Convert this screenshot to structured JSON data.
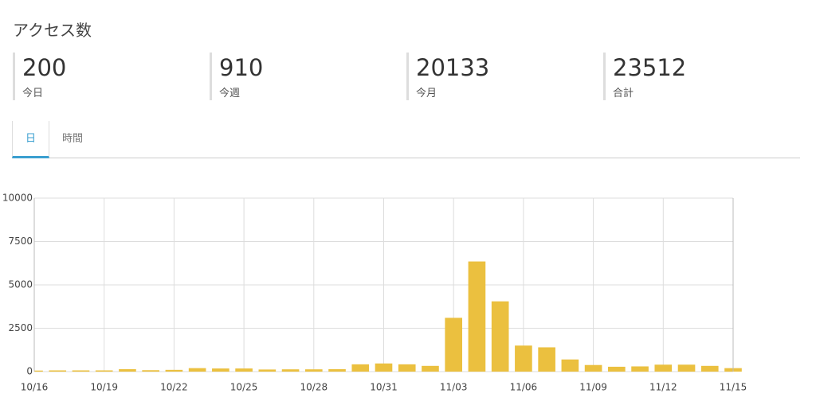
{
  "header": {
    "title": "アクセス数"
  },
  "stats": [
    {
      "value": 200,
      "label": "今日"
    },
    {
      "value": 910,
      "label": "今週"
    },
    {
      "value": 20133,
      "label": "今月"
    },
    {
      "value": 23512,
      "label": "合計"
    }
  ],
  "tabs": [
    "日",
    "時間"
  ],
  "chart_data": {
    "type": "bar",
    "categories": [
      "10/16",
      null,
      null,
      "10/19",
      null,
      null,
      "10/22",
      null,
      null,
      "10/25",
      null,
      null,
      "10/28",
      null,
      null,
      "10/31",
      null,
      null,
      "11/03",
      null,
      null,
      "11/06",
      null,
      null,
      "11/09",
      null,
      null,
      "11/12",
      null,
      null,
      "11/15"
    ],
    "values": [
      60,
      70,
      70,
      70,
      140,
      80,
      100,
      200,
      180,
      180,
      120,
      130,
      130,
      140,
      420,
      470,
      420,
      330,
      3100,
      6350,
      4050,
      1500,
      1400,
      700,
      380,
      280,
      300,
      400,
      400,
      330,
      200
    ],
    "color": "#ebc03f",
    "ylim": [
      0,
      10000
    ],
    "yticks": [
      0,
      2500,
      5000,
      7500,
      10000
    ],
    "grid": true
  }
}
